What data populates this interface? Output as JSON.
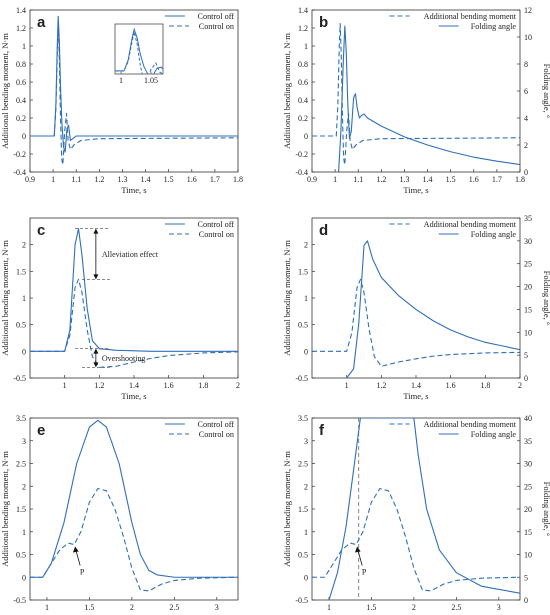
{
  "colors": {
    "series": "#2f6fb8",
    "axis": "#333333",
    "annotation": "#444444"
  },
  "chart_data": [
    {
      "id": "a",
      "panel_label": "a",
      "type": "line",
      "xlabel": "Time, s",
      "ylabel": "Additional bending moment, N·m",
      "y2label": "",
      "xlim": [
        0.9,
        1.8
      ],
      "ylim": [
        -0.4,
        1.4
      ],
      "xticks": [
        0.9,
        1,
        1.1,
        1.2,
        1.3,
        1.4,
        1.5,
        1.6,
        1.7,
        1.8
      ],
      "yticks": [
        -0.4,
        -0.2,
        0,
        0.2,
        0.4,
        0.6,
        0.8,
        1,
        1.2,
        1.4
      ],
      "legend_position": "top-right",
      "series": [
        {
          "name": "Control off",
          "style": "solid",
          "axis": "left",
          "points": [
            [
              0.9,
              0
            ],
            [
              1.005,
              0
            ],
            [
              1.012,
              0.35
            ],
            [
              1.018,
              1.0
            ],
            [
              1.022,
              1.33
            ],
            [
              1.027,
              1.05
            ],
            [
              1.032,
              0.55
            ],
            [
              1.038,
              0.15
            ],
            [
              1.045,
              -0.12
            ],
            [
              1.052,
              -0.18
            ],
            [
              1.06,
              0.08
            ],
            [
              1.067,
              0.12
            ],
            [
              1.075,
              -0.05
            ],
            [
              1.085,
              -0.03
            ],
            [
              1.1,
              0
            ],
            [
              1.8,
              0
            ]
          ]
        },
        {
          "name": "Control on",
          "style": "dashed",
          "axis": "left",
          "points": [
            [
              0.9,
              0
            ],
            [
              1.005,
              0
            ],
            [
              1.012,
              0.3
            ],
            [
              1.018,
              0.9
            ],
            [
              1.022,
              1.25
            ],
            [
              1.027,
              0.85
            ],
            [
              1.032,
              0.2
            ],
            [
              1.037,
              -0.25
            ],
            [
              1.042,
              -0.32
            ],
            [
              1.05,
              0.05
            ],
            [
              1.058,
              0.25
            ],
            [
              1.065,
              -0.05
            ],
            [
              1.075,
              -0.15
            ],
            [
              1.09,
              -0.1
            ],
            [
              1.12,
              -0.05
            ],
            [
              1.2,
              -0.03
            ],
            [
              1.8,
              -0.02
            ]
          ]
        }
      ],
      "inset": {
        "xlim": [
          0.99,
          1.07
        ],
        "ylim": [
          -0.1,
          1.5
        ],
        "xticks": [
          1,
          1.05
        ]
      }
    },
    {
      "id": "b",
      "panel_label": "b",
      "type": "line",
      "xlabel": "Time, s",
      "ylabel": "Additional bending moment, N·m",
      "y2label": "Folding angle, °",
      "xlim": [
        0.9,
        1.8
      ],
      "ylim": [
        -0.4,
        1.4
      ],
      "y2lim": [
        0,
        12
      ],
      "xticks": [
        0.9,
        1,
        1.1,
        1.2,
        1.3,
        1.4,
        1.5,
        1.6,
        1.7,
        1.8
      ],
      "yticks": [
        -0.4,
        -0.2,
        0,
        0.2,
        0.4,
        0.6,
        0.8,
        1,
        1.2,
        1.4
      ],
      "y2ticks": [
        0,
        2,
        4,
        6,
        8,
        10,
        12
      ],
      "legend_position": "top-right",
      "series": [
        {
          "name": "Additional bending moment",
          "style": "dashed",
          "axis": "left",
          "points": [
            [
              0.9,
              0
            ],
            [
              1.005,
              0
            ],
            [
              1.012,
              0.35
            ],
            [
              1.018,
              1.0
            ],
            [
              1.022,
              1.25
            ],
            [
              1.027,
              0.85
            ],
            [
              1.032,
              0.2
            ],
            [
              1.037,
              -0.25
            ],
            [
              1.042,
              -0.32
            ],
            [
              1.05,
              0.05
            ],
            [
              1.058,
              0.25
            ],
            [
              1.065,
              -0.05
            ],
            [
              1.075,
              -0.15
            ],
            [
              1.09,
              -0.1
            ],
            [
              1.12,
              -0.05
            ],
            [
              1.2,
              -0.03
            ],
            [
              1.8,
              -0.02
            ]
          ]
        },
        {
          "name": "Folding angle",
          "style": "solid",
          "axis": "right",
          "points": [
            [
              1.015,
              0
            ],
            [
              1.025,
              3
            ],
            [
              1.035,
              8
            ],
            [
              1.042,
              10.8
            ],
            [
              1.048,
              9
            ],
            [
              1.055,
              5
            ],
            [
              1.062,
              2.5
            ],
            [
              1.07,
              3
            ],
            [
              1.08,
              5.5
            ],
            [
              1.088,
              5.8
            ],
            [
              1.095,
              4.8
            ],
            [
              1.105,
              4
            ],
            [
              1.115,
              4.2
            ],
            [
              1.125,
              4.3
            ],
            [
              1.14,
              4
            ],
            [
              1.2,
              3.4
            ],
            [
              1.3,
              2.6
            ],
            [
              1.4,
              2.0
            ],
            [
              1.5,
              1.5
            ],
            [
              1.6,
              1.1
            ],
            [
              1.7,
              0.8
            ],
            [
              1.8,
              0.55
            ]
          ]
        }
      ]
    },
    {
      "id": "c",
      "panel_label": "c",
      "type": "line",
      "xlabel": "Time, s",
      "ylabel": "Additional bending moment, N·m",
      "y2label": "",
      "xlim": [
        0.8,
        2
      ],
      "ylim": [
        -0.5,
        2.5
      ],
      "xticks": [
        1,
        1.2,
        1.4,
        1.6,
        1.8,
        2
      ],
      "yticks": [
        -0.5,
        0,
        0.5,
        1,
        1.5,
        2
      ],
      "legend_position": "top-right",
      "series": [
        {
          "name": "Control off",
          "style": "solid",
          "axis": "left",
          "points": [
            [
              0.8,
              0
            ],
            [
              1.0,
              0
            ],
            [
              1.03,
              0.4
            ],
            [
              1.06,
              2.0
            ],
            [
              1.08,
              2.3
            ],
            [
              1.1,
              1.8
            ],
            [
              1.13,
              0.8
            ],
            [
              1.16,
              0.2
            ],
            [
              1.2,
              0.05
            ],
            [
              1.3,
              0.02
            ],
            [
              1.5,
              0
            ],
            [
              2.0,
              0
            ]
          ]
        },
        {
          "name": "Control on",
          "style": "dashed",
          "axis": "left",
          "points": [
            [
              0.8,
              0
            ],
            [
              1.0,
              0
            ],
            [
              1.03,
              0.3
            ],
            [
              1.06,
              1.2
            ],
            [
              1.08,
              1.35
            ],
            [
              1.1,
              1.1
            ],
            [
              1.13,
              0.4
            ],
            [
              1.16,
              -0.1
            ],
            [
              1.2,
              -0.3
            ],
            [
              1.3,
              -0.28
            ],
            [
              1.4,
              -0.2
            ],
            [
              1.5,
              -0.13
            ],
            [
              1.6,
              -0.08
            ],
            [
              1.8,
              -0.03
            ],
            [
              2.0,
              -0.01
            ]
          ]
        }
      ],
      "annotations": [
        {
          "text": "Alleviation effect",
          "from_y": 2.3,
          "to_y": 1.35,
          "at_x": 1.18
        },
        {
          "text": "Overshooting",
          "from_y": 0.05,
          "to_y": -0.3,
          "at_x": 1.18
        }
      ]
    },
    {
      "id": "d",
      "panel_label": "d",
      "type": "line",
      "xlabel": "Time, s",
      "ylabel": "Additional bending moment, N·m",
      "y2label": "Folding angle, °",
      "xlim": [
        0.8,
        2
      ],
      "ylim": [
        -0.5,
        2.5
      ],
      "y2lim": [
        0,
        35
      ],
      "xticks": [
        1,
        1.2,
        1.4,
        1.6,
        1.8,
        2
      ],
      "yticks": [
        -0.5,
        0,
        0.5,
        1,
        1.5,
        2
      ],
      "y2ticks": [
        0,
        5,
        10,
        15,
        20,
        25,
        30,
        35
      ],
      "legend_position": "top-right",
      "series": [
        {
          "name": "Additional bending moment",
          "style": "dashed",
          "axis": "left",
          "points": [
            [
              0.8,
              0
            ],
            [
              1.0,
              0
            ],
            [
              1.03,
              0.35
            ],
            [
              1.06,
              1.2
            ],
            [
              1.08,
              1.35
            ],
            [
              1.1,
              1.1
            ],
            [
              1.13,
              0.4
            ],
            [
              1.16,
              -0.1
            ],
            [
              1.2,
              -0.28
            ],
            [
              1.3,
              -0.2
            ],
            [
              1.4,
              -0.14
            ],
            [
              1.5,
              -0.09
            ],
            [
              1.6,
              -0.06
            ],
            [
              1.8,
              -0.03
            ],
            [
              2.0,
              -0.02
            ]
          ]
        },
        {
          "name": "Folding angle",
          "style": "solid",
          "axis": "right",
          "points": [
            [
              1.0,
              0
            ],
            [
              1.04,
              2
            ],
            [
              1.07,
              12
            ],
            [
              1.1,
              29
            ],
            [
              1.12,
              30
            ],
            [
              1.15,
              26
            ],
            [
              1.2,
              22
            ],
            [
              1.3,
              18
            ],
            [
              1.4,
              15
            ],
            [
              1.5,
              12.5
            ],
            [
              1.6,
              10.5
            ],
            [
              1.7,
              9
            ],
            [
              1.8,
              7.8
            ],
            [
              1.9,
              7
            ],
            [
              2.0,
              6.2
            ]
          ]
        }
      ]
    },
    {
      "id": "e",
      "panel_label": "e",
      "type": "line",
      "xlabel": "Time, s",
      "ylabel": "Additional bending moment, N·m",
      "y2label": "",
      "xlim": [
        0.8,
        3.25
      ],
      "ylim": [
        -0.5,
        3.5
      ],
      "xticks": [
        1,
        1.5,
        2,
        2.5,
        3
      ],
      "yticks": [
        -0.5,
        0,
        0.5,
        1,
        1.5,
        2,
        2.5,
        3,
        3.5
      ],
      "legend_position": "top-right",
      "series": [
        {
          "name": "Control off",
          "style": "solid",
          "axis": "left",
          "points": [
            [
              0.8,
              0
            ],
            [
              0.95,
              0
            ],
            [
              1.05,
              0.3
            ],
            [
              1.2,
              1.2
            ],
            [
              1.35,
              2.5
            ],
            [
              1.5,
              3.3
            ],
            [
              1.6,
              3.45
            ],
            [
              1.7,
              3.3
            ],
            [
              1.85,
              2.5
            ],
            [
              2.0,
              1.2
            ],
            [
              2.1,
              0.5
            ],
            [
              2.2,
              0.15
            ],
            [
              2.3,
              0.05
            ],
            [
              2.5,
              0
            ],
            [
              3.25,
              0
            ]
          ]
        },
        {
          "name": "Control on",
          "style": "dashed",
          "axis": "left",
          "points": [
            [
              0.8,
              0
            ],
            [
              0.95,
              0
            ],
            [
              1.05,
              0.3
            ],
            [
              1.15,
              0.6
            ],
            [
              1.25,
              0.75
            ],
            [
              1.32,
              0.72
            ],
            [
              1.4,
              1.0
            ],
            [
              1.5,
              1.65
            ],
            [
              1.6,
              1.95
            ],
            [
              1.7,
              1.9
            ],
            [
              1.8,
              1.5
            ],
            [
              1.9,
              0.9
            ],
            [
              2.0,
              0.2
            ],
            [
              2.1,
              -0.28
            ],
            [
              2.2,
              -0.3
            ],
            [
              2.35,
              -0.15
            ],
            [
              2.5,
              -0.07
            ],
            [
              2.8,
              -0.02
            ],
            [
              3.25,
              0
            ]
          ]
        }
      ],
      "annotations": [
        {
          "text": "P",
          "point": [
            1.32,
            0.72
          ]
        }
      ]
    },
    {
      "id": "f",
      "panel_label": "f",
      "type": "line",
      "xlabel": "Time, s",
      "ylabel": "Additional bending moment, N·m",
      "y2label": "Folding angle, °",
      "xlim": [
        0.8,
        3.25
      ],
      "ylim": [
        -0.5,
        3.5
      ],
      "y2lim": [
        0,
        40
      ],
      "xticks": [
        1,
        1.5,
        2,
        2.5,
        3
      ],
      "yticks": [
        -0.5,
        0,
        0.5,
        1,
        1.5,
        2,
        2.5,
        3,
        3.5
      ],
      "y2ticks": [
        0,
        5,
        10,
        15,
        20,
        25,
        30,
        35,
        40
      ],
      "legend_position": "top-right",
      "series": [
        {
          "name": "Additional bending moment",
          "style": "dashed",
          "axis": "left",
          "points": [
            [
              0.8,
              0
            ],
            [
              0.95,
              0
            ],
            [
              1.05,
              0.3
            ],
            [
              1.15,
              0.6
            ],
            [
              1.25,
              0.75
            ],
            [
              1.32,
              0.72
            ],
            [
              1.4,
              1.0
            ],
            [
              1.5,
              1.65
            ],
            [
              1.6,
              1.95
            ],
            [
              1.7,
              1.9
            ],
            [
              1.8,
              1.5
            ],
            [
              1.9,
              0.9
            ],
            [
              2.0,
              0.2
            ],
            [
              2.1,
              -0.28
            ],
            [
              2.2,
              -0.3
            ],
            [
              2.35,
              -0.15
            ],
            [
              2.5,
              -0.07
            ],
            [
              2.8,
              -0.02
            ],
            [
              3.25,
              0
            ]
          ]
        },
        {
          "name": "Folding angle",
          "style": "solid",
          "axis": "right",
          "points": [
            [
              1.0,
              0
            ],
            [
              1.1,
              6
            ],
            [
              1.2,
              16
            ],
            [
              1.3,
              30
            ],
            [
              1.37,
              40
            ],
            [
              2.0,
              40
            ],
            [
              2.05,
              32
            ],
            [
              2.15,
              20
            ],
            [
              2.3,
              11
            ],
            [
              2.5,
              6
            ],
            [
              2.8,
              3
            ],
            [
              3.25,
              1.5
            ]
          ]
        }
      ],
      "annotations": [
        {
          "text": "P",
          "point": [
            1.32,
            0.72
          ]
        }
      ],
      "reference_line": {
        "x": 1.35,
        "style": "dashed"
      }
    }
  ]
}
